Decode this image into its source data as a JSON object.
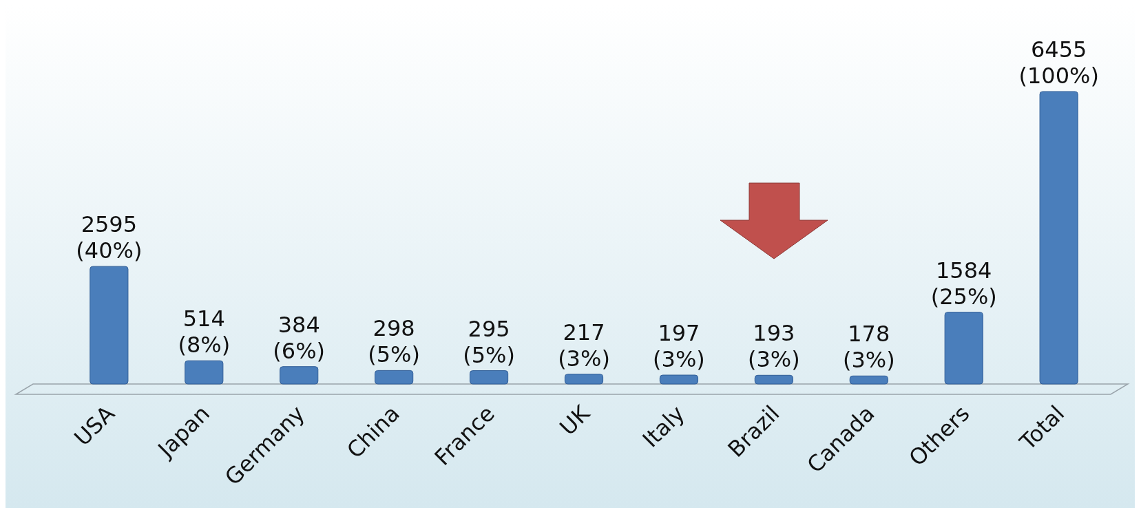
{
  "chart_data": {
    "type": "bar",
    "categories": [
      "USA",
      "Japan",
      "Germany",
      "China",
      "France",
      "UK",
      "Italy",
      "Brazil",
      "Canada",
      "Others",
      "Total"
    ],
    "values": [
      2595,
      514,
      384,
      298,
      295,
      217,
      197,
      193,
      178,
      1584,
      6455
    ],
    "value_labels": [
      "2595 (40%)",
      "514 (8%)",
      "384 (6%)",
      "298 (5%)",
      "295 (5%)",
      "217 (3%)",
      "197 (3%)",
      "193 (3%)",
      "178 (3%)",
      "1584 (25%)",
      "6455 (100%)"
    ],
    "color": "#4a7ebb"
  }
}
